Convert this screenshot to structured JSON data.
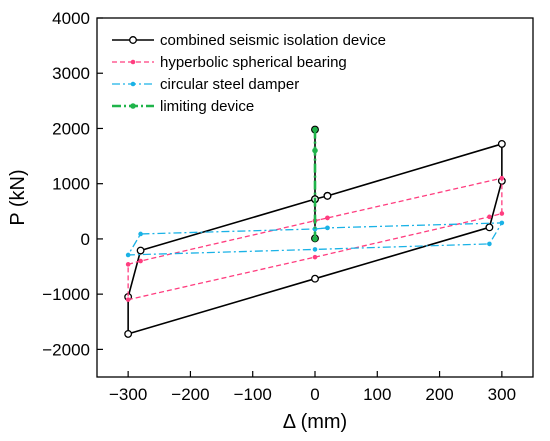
{
  "chart_data": {
    "type": "line",
    "xlabel": "Δ (mm)",
    "ylabel": "P (kN)",
    "xlim": [
      -350,
      350
    ],
    "ylim": [
      -2500,
      4000
    ],
    "xticks": [
      -300,
      -200,
      -100,
      0,
      100,
      200,
      300
    ],
    "yticks": [
      -2000,
      -1000,
      0,
      1000,
      2000,
      3000,
      4000
    ],
    "xtick_labels": [
      "−300",
      "−200",
      "−100",
      "0",
      "100",
      "200",
      "300"
    ],
    "ytick_labels": [
      "−2000",
      "−1000",
      "0",
      "1000",
      "2000",
      "3000",
      "4000"
    ],
    "grid": false,
    "legend_position": "top-left",
    "series": [
      {
        "name": "combined seismic isolation device",
        "color": "#000000",
        "line_style": "solid",
        "marker": "open-circle",
        "x": [
          0,
          0,
          0,
          20,
          300,
          300,
          280,
          0,
          -300,
          -300,
          -280,
          0,
          20
        ],
        "y": [
          1980,
          10,
          720,
          780,
          1720,
          1050,
          210,
          -720,
          -1720,
          -1050,
          -210,
          720,
          780
        ]
      },
      {
        "name": "hyperbolic spherical bearing",
        "color": "#ff3d7f",
        "line_style": "dashed",
        "marker": "dot",
        "x": [
          0,
          0,
          20,
          300,
          300,
          280,
          0,
          -300,
          -300,
          -280,
          0,
          20
        ],
        "y": [
          0,
          330,
          380,
          1100,
          460,
          400,
          -330,
          -1100,
          -460,
          -400,
          330,
          380
        ]
      },
      {
        "name": "circular steel damper",
        "color": "#1ab2e6",
        "line_style": "dash-dot",
        "marker": "dot",
        "x": [
          0,
          0,
          20,
          300,
          280,
          0,
          -300,
          -280,
          0,
          20
        ],
        "y": [
          0,
          180,
          200,
          290,
          -90,
          -190,
          -290,
          90,
          180,
          200
        ]
      },
      {
        "name": "limiting device",
        "color": "#1fb44a",
        "line_style": "dash-dot",
        "marker": "dot",
        "x": [
          0,
          0,
          0
        ],
        "y": [
          1980,
          1600,
          0
        ]
      }
    ]
  }
}
